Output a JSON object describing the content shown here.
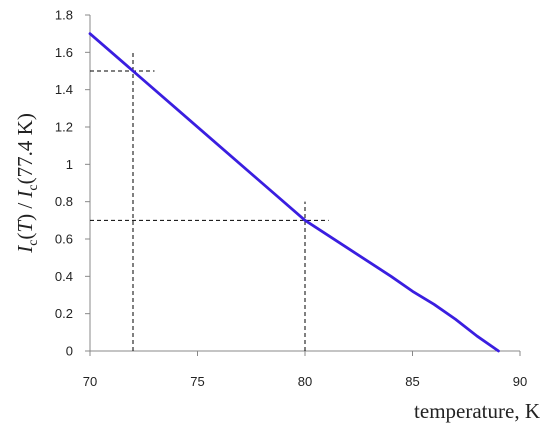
{
  "chart_data": {
    "type": "line",
    "xlabel": "temperature, K",
    "ylabel": "I_c(T) / I_c(77.4 K)",
    "xlim": [
      70,
      90
    ],
    "ylim": [
      0,
      1.8
    ],
    "xticks": [
      "70",
      "75",
      "80",
      "85",
      "90"
    ],
    "yticks": [
      "0",
      "0.2",
      "0.4",
      "0.6",
      "0.8",
      "1",
      "1.2",
      "1.4",
      "1.6",
      "1.8"
    ],
    "grid": false,
    "series": [
      {
        "color": "#3a1ee0",
        "x": [
          70,
          72,
          74,
          76,
          78,
          80,
          82,
          84,
          85,
          86,
          87,
          88,
          89
        ],
        "y": [
          1.7,
          1.5,
          1.3,
          1.1,
          0.9,
          0.7,
          0.55,
          0.4,
          0.32,
          0.25,
          0.17,
          0.08,
          0.0
        ]
      }
    ],
    "reference_lines": [
      {
        "x": 72,
        "y": 1.5
      },
      {
        "x": 80,
        "y": 0.7
      }
    ]
  }
}
